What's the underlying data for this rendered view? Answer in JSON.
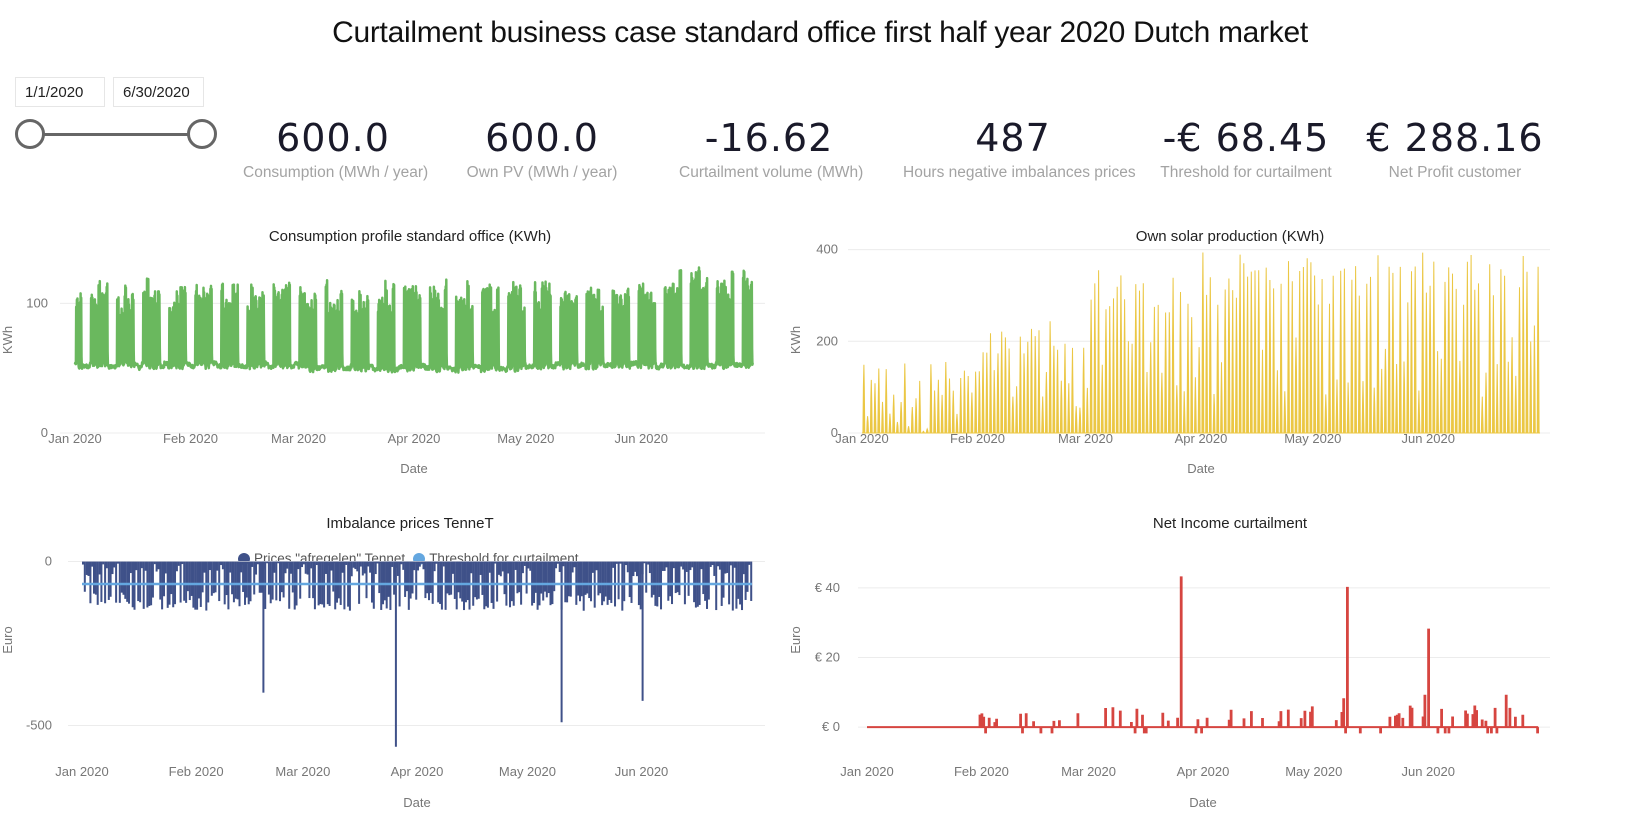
{
  "title": "Curtailment business case standard office first half year 2020 Dutch market",
  "date_filter": {
    "start": "1/1/2020",
    "end": "6/30/2020",
    "slider_range_fraction": [
      0,
      1
    ]
  },
  "kpis": [
    {
      "value": "600.0",
      "label": "Consumption (MWh / year)"
    },
    {
      "value": "600.0",
      "label": "Own PV (MWh / year)"
    },
    {
      "value": "-16.62",
      "label": "Curtailment volume (MWh)"
    },
    {
      "value": "487",
      "label": "Hours negative imbalances prices"
    },
    {
      "value": "-€ 68.45",
      "label": "Threshold for curtailment"
    },
    {
      "value": "€ 288.16",
      "label": "Net Profit customer"
    }
  ],
  "colors": {
    "consumption": "#6ab85e",
    "solar": "#ebc744",
    "prices": "#3f5189",
    "threshold": "#64a7e0",
    "net_income": "#d64540",
    "grid": "#ececec",
    "axis_text": "#777777"
  },
  "chart_data": [
    {
      "id": "consumption",
      "type": "line",
      "title": "Consumption profile standard office (KWh)",
      "xlabel": "Date",
      "ylabel": "KWh",
      "x_ticks": [
        "Jan 2020",
        "Feb 2020",
        "Mar 2020",
        "Apr 2020",
        "May 2020",
        "Jun 2020"
      ],
      "y_ticks": [
        0,
        100
      ],
      "ylim": [
        0,
        145
      ],
      "x_range": [
        "2020-01-01",
        "2020-06-30"
      ],
      "description": "Hourly series; weekday daytime peaks ~100-135 KWh, base load ~50-55 KWh, weekend troughs at base load",
      "base_load": 52,
      "weekday_peak_range": [
        100,
        135
      ],
      "max": 137,
      "min": 43
    },
    {
      "id": "solar",
      "type": "area",
      "title": "Own solar production (KWh)",
      "xlabel": "Date",
      "ylabel": "KWh",
      "x_ticks": [
        "Jan 2020",
        "Feb 2020",
        "Mar 2020",
        "Apr 2020",
        "May 2020",
        "Jun 2020"
      ],
      "y_ticks": [
        0,
        200,
        400
      ],
      "ylim": [
        0,
        410
      ],
      "x_range": [
        "2020-01-01",
        "2020-06-30"
      ],
      "description": "Hourly PV output; daily peaks rising from ~20-150 KWh in Jan to ~250 KWh Feb, ~300-390 KWh from Mar through Jun",
      "monthly_peak_approx": {
        "Jan": 155,
        "Feb": 245,
        "Mar": 360,
        "Apr": 395,
        "May": 395,
        "Jun": 395
      },
      "max": 395
    },
    {
      "id": "imbalance",
      "type": "bar",
      "title": "Imbalance prices TenneT",
      "xlabel": "Date",
      "ylabel": "Euro",
      "x_ticks": [
        "Jan 2020",
        "Feb 2020",
        "Mar 2020",
        "Apr 2020",
        "May 2020",
        "Jun 2020"
      ],
      "y_ticks": [
        0,
        -500
      ],
      "ylim": [
        -590,
        20
      ],
      "x_range": [
        "2020-01-01",
        "2020-06-30"
      ],
      "legend": [
        {
          "name": "Prices \"afregelen\" Tennet",
          "color": "#3f5189"
        },
        {
          "name": "Threshold for curtailment",
          "color": "#64a7e0"
        }
      ],
      "legend_position": "top-center",
      "threshold": -68.45,
      "typical_range": [
        -150,
        0
      ],
      "spikes": [
        {
          "date": "2020-02-19",
          "value": -400
        },
        {
          "date": "2020-03-26",
          "value": -565
        },
        {
          "date": "2020-05-10",
          "value": -490
        },
        {
          "date": "2020-06-01",
          "value": -425
        }
      ]
    },
    {
      "id": "net_income",
      "type": "line",
      "title": "Net Income curtailment",
      "xlabel": "Date",
      "ylabel": "Euro",
      "x_ticks": [
        "Jan 2020",
        "Feb 2020",
        "Mar 2020",
        "Apr 2020",
        "May 2020",
        "Jun 2020"
      ],
      "y_ticks": [
        "€ 0",
        "€ 20",
        "€ 40"
      ],
      "ylim": [
        -8,
        48
      ],
      "x_range": [
        "2020-01-01",
        "2020-06-30"
      ],
      "spikes": [
        {
          "date": "2020-03-26",
          "value": 43
        },
        {
          "date": "2020-05-10",
          "value": 40
        },
        {
          "date": "2020-06-01",
          "value": 28
        },
        {
          "date": "2020-05-31",
          "value": 9
        },
        {
          "date": "2020-05-09",
          "value": 8
        },
        {
          "date": "2020-06-22",
          "value": 9
        }
      ],
      "typical_small_values": [
        0,
        6
      ]
    }
  ]
}
